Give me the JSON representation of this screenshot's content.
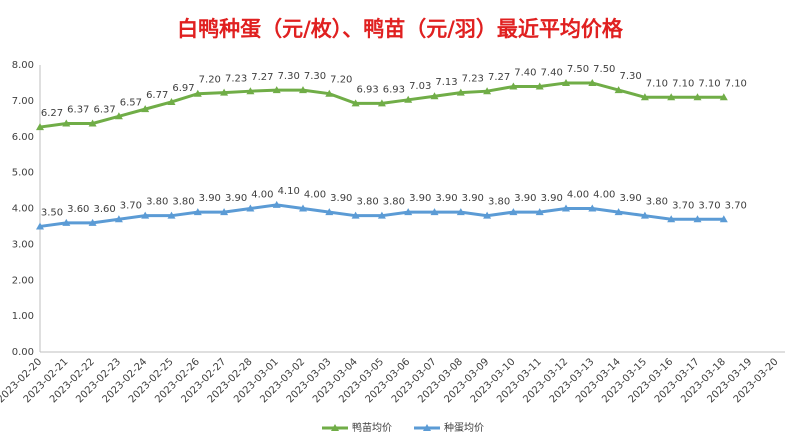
{
  "chart_data": {
    "type": "line",
    "title": "白鸭种蛋（元/枚）、鸭苗（元/羽）最近平均价格",
    "categories": [
      "2023-02-20",
      "2023-02-21",
      "2023-02-22",
      "2023-02-23",
      "2023-02-24",
      "2023-02-25",
      "2023-02-26",
      "2023-02-27",
      "2023-02-28",
      "2023-03-01",
      "2023-03-02",
      "2023-03-03",
      "2023-03-04",
      "2023-03-05",
      "2023-03-06",
      "2023-03-07",
      "2023-03-08",
      "2023-03-09",
      "2023-03-10",
      "2023-03-11",
      "2023-03-12",
      "2023-03-13",
      "2023-03-14",
      "2023-03-15",
      "2023-03-16",
      "2023-03-17",
      "2023-03-18",
      "2023-03-19",
      "2023-03-20"
    ],
    "series": [
      {
        "name": "鸭苗均价",
        "color": "#70ad47",
        "values": [
          6.27,
          6.37,
          6.37,
          6.57,
          6.77,
          6.97,
          7.2,
          7.23,
          7.27,
          7.3,
          7.3,
          7.2,
          6.93,
          6.93,
          7.03,
          7.13,
          7.23,
          7.27,
          7.4,
          7.4,
          7.5,
          7.5,
          7.3,
          7.1,
          7.1,
          7.1,
          7.1,
          null,
          null
        ],
        "value_labels": [
          "6.27",
          "6.37",
          "6.37",
          "6.57",
          "6.77",
          "6.97",
          "7.20",
          "7.23",
          "7.27",
          "7.30",
          "7.30",
          "7.20",
          "6.93",
          "6.93",
          "7.03",
          "7.13",
          "7.23",
          "7.27",
          "7.40",
          "7.40",
          "7.50",
          "7.50",
          "7.30",
          "7.10",
          "7.10",
          "7.10",
          "7.10",
          null,
          null
        ]
      },
      {
        "name": "种蛋均价",
        "color": "#5b9bd5",
        "values": [
          3.5,
          3.6,
          3.6,
          3.7,
          3.8,
          3.8,
          3.9,
          3.9,
          4.0,
          4.1,
          4.0,
          3.9,
          3.8,
          3.8,
          3.9,
          3.9,
          3.9,
          3.8,
          3.9,
          3.9,
          4.0,
          4.0,
          3.9,
          3.8,
          3.7,
          3.7,
          3.7,
          null,
          null
        ],
        "value_labels": [
          "3.50",
          "3.60",
          "3.60",
          "3.70",
          "3.80",
          "3.80",
          "3.90",
          "3.90",
          "4.00",
          "4.10",
          "4.00",
          "3.90",
          "3.80",
          "3.80",
          "3.90",
          "3.90",
          "3.90",
          "3.80",
          "3.90",
          "3.90",
          "4.00",
          "4.00",
          "3.90",
          "3.80",
          "3.70",
          "3.70",
          "3.70",
          null,
          null
        ]
      }
    ],
    "ylim": [
      0,
      8
    ],
    "yticks": [
      {
        "value": 0,
        "label": "0.00"
      },
      {
        "value": 1,
        "label": "1.00"
      },
      {
        "value": 2,
        "label": "2.00"
      },
      {
        "value": 3,
        "label": "3.00"
      },
      {
        "value": 4,
        "label": "4.00"
      },
      {
        "value": 5,
        "label": "5.00"
      },
      {
        "value": 6,
        "label": "6.00"
      },
      {
        "value": 7,
        "label": "7.00"
      },
      {
        "value": 8,
        "label": "8.00"
      }
    ],
    "legend": "bottom"
  }
}
